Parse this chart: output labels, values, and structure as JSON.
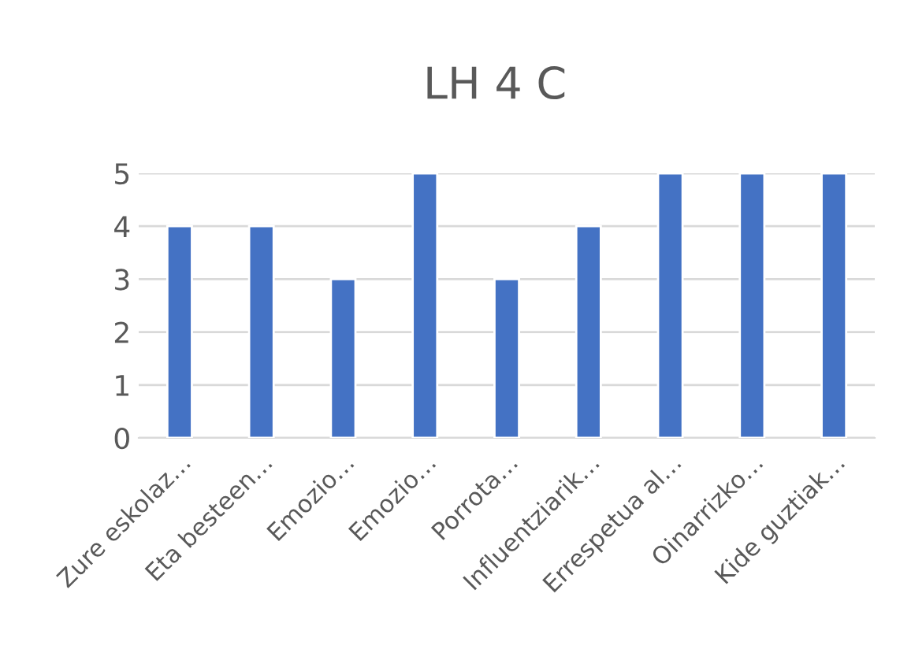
{
  "chart_data": {
    "type": "bar",
    "title": "LH 4 C",
    "categories": [
      "Zure eskolaz…",
      "Eta besteen…",
      "Emozio…",
      "Emozio…",
      "Porrota…",
      "Influentziarik…",
      "Errespetua al…",
      "Oinarrizko…",
      "Kide guztiak…"
    ],
    "values": [
      4,
      4,
      3,
      5,
      3,
      4,
      5,
      5,
      5
    ],
    "color": "#4472c4",
    "ylim": [
      0,
      5
    ],
    "yticks": [
      0,
      1,
      2,
      3,
      4,
      5
    ],
    "grid": "y",
    "legend": false
  }
}
